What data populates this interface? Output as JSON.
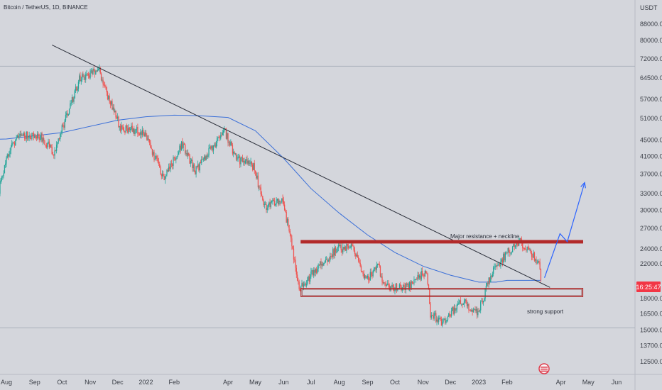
{
  "header": {
    "title": "Bitcoin / TetherUS, 1D, BINANCE",
    "currency": "USDT"
  },
  "price_axis": {
    "labels": [
      "88000.00",
      "80000.00",
      "72000.00",
      "64500.00",
      "57000.00",
      "51000.00",
      "45000.00",
      "41000.00",
      "37000.00",
      "33000.00",
      "30000.00",
      "27000.00",
      "24000.00",
      "22000.00",
      "18000.00",
      "16500.00",
      "15000.00",
      "13700.00",
      "12500.00"
    ],
    "current_price_tag": "16:25:47"
  },
  "time_axis": {
    "labels": [
      "Aug",
      "Sep",
      "Oct",
      "Nov",
      "Dec",
      "2022",
      "Feb",
      "Apr",
      "May",
      "Jun",
      "Jul",
      "Aug",
      "Sep",
      "Oct",
      "Nov",
      "Dec",
      "2023",
      "Feb",
      "Apr",
      "May",
      "Jun"
    ]
  },
  "annotations": {
    "resistance_label": "Major resistance + neckline",
    "support_label": "strong support"
  },
  "colors": {
    "background": "#d4d6dc",
    "up_candle": "#26a69a",
    "down_candle": "#ef5350",
    "moving_average": "#3a6fd8",
    "trendline": "#2a2e39",
    "zone": "#b22a2a",
    "projection": "#2962ff",
    "price_tag": "#f23645"
  },
  "chart_data": {
    "type": "candlestick",
    "title": "Bitcoin / TetherUS, 1D, BINANCE",
    "y_unit": "USDT",
    "y_scale": "log",
    "ylim": [
      12500,
      90000
    ],
    "x_range": [
      "2021-08",
      "2023-06"
    ],
    "close_path": [
      [
        "2021-07-20",
        30500
      ],
      [
        "2021-08-01",
        41000
      ],
      [
        "2021-08-15",
        46500
      ],
      [
        "2021-09-07",
        46000
      ],
      [
        "2021-09-22",
        42000
      ],
      [
        "2021-10-01",
        48000
      ],
      [
        "2021-10-20",
        64000
      ],
      [
        "2021-11-10",
        68000
      ],
      [
        "2021-11-20",
        58000
      ],
      [
        "2021-12-04",
        48500
      ],
      [
        "2021-12-30",
        47000
      ],
      [
        "2022-01-21",
        36000
      ],
      [
        "2022-02-10",
        44000
      ],
      [
        "2022-02-24",
        37500
      ],
      [
        "2022-03-28",
        47500
      ],
      [
        "2022-04-10",
        40500
      ],
      [
        "2022-04-30",
        38500
      ],
      [
        "2022-05-10",
        30500
      ],
      [
        "2022-05-31",
        31800
      ],
      [
        "2022-06-13",
        22500
      ],
      [
        "2022-06-18",
        19000
      ],
      [
        "2022-07-08",
        21500
      ],
      [
        "2022-07-30",
        24000
      ],
      [
        "2022-08-15",
        24300
      ],
      [
        "2022-08-31",
        20000
      ],
      [
        "2022-09-12",
        22000
      ],
      [
        "2022-09-20",
        19200
      ],
      [
        "2022-10-15",
        19300
      ],
      [
        "2022-11-05",
        21200
      ],
      [
        "2022-11-09",
        16500
      ],
      [
        "2022-11-22",
        15700
      ],
      [
        "2022-12-13",
        17800
      ],
      [
        "2022-12-31",
        16550
      ],
      [
        "2023-01-15",
        20800
      ],
      [
        "2023-02-01",
        23500
      ],
      [
        "2023-02-16",
        25000
      ],
      [
        "2023-02-28",
        23300
      ],
      [
        "2023-03-08",
        21800
      ],
      [
        "2023-03-10",
        20200
      ]
    ],
    "moving_average": [
      [
        "2021-07-20",
        45200
      ],
      [
        "2021-08-01",
        45300
      ],
      [
        "2021-10-01",
        47000
      ],
      [
        "2021-12-01",
        50500
      ],
      [
        "2022-01-01",
        51500
      ],
      [
        "2022-02-01",
        52000
      ],
      [
        "2022-03-01",
        51800
      ],
      [
        "2022-04-01",
        51300
      ],
      [
        "2022-05-01",
        47500
      ],
      [
        "2022-06-01",
        40500
      ],
      [
        "2022-07-01",
        34000
      ],
      [
        "2022-08-01",
        29500
      ],
      [
        "2022-09-01",
        26000
      ],
      [
        "2022-10-01",
        23500
      ],
      [
        "2022-11-01",
        21700
      ],
      [
        "2022-12-01",
        20600
      ],
      [
        "2023-01-01",
        19800
      ],
      [
        "2023-01-20",
        19800
      ],
      [
        "2023-02-01",
        20000
      ],
      [
        "2023-03-10",
        20000
      ]
    ],
    "trendline": [
      [
        "2021-09-20",
        78000
      ],
      [
        "2023-03-20",
        19200
      ]
    ],
    "resistance_zone": {
      "from": "2022-06-20",
      "to": "2023-04-25",
      "low": 24800,
      "high": 25200
    },
    "support_zone": {
      "from": "2022-06-20",
      "to": "2023-04-25",
      "low": 18200,
      "high": 19100
    },
    "top_reference_line": 69000,
    "bottom_reference_line": 15200,
    "projection_path": [
      [
        "2023-03-14",
        20300
      ],
      [
        "2023-03-31",
        26200
      ],
      [
        "2023-04-08",
        25000
      ],
      [
        "2023-04-27",
        35200
      ]
    ]
  }
}
